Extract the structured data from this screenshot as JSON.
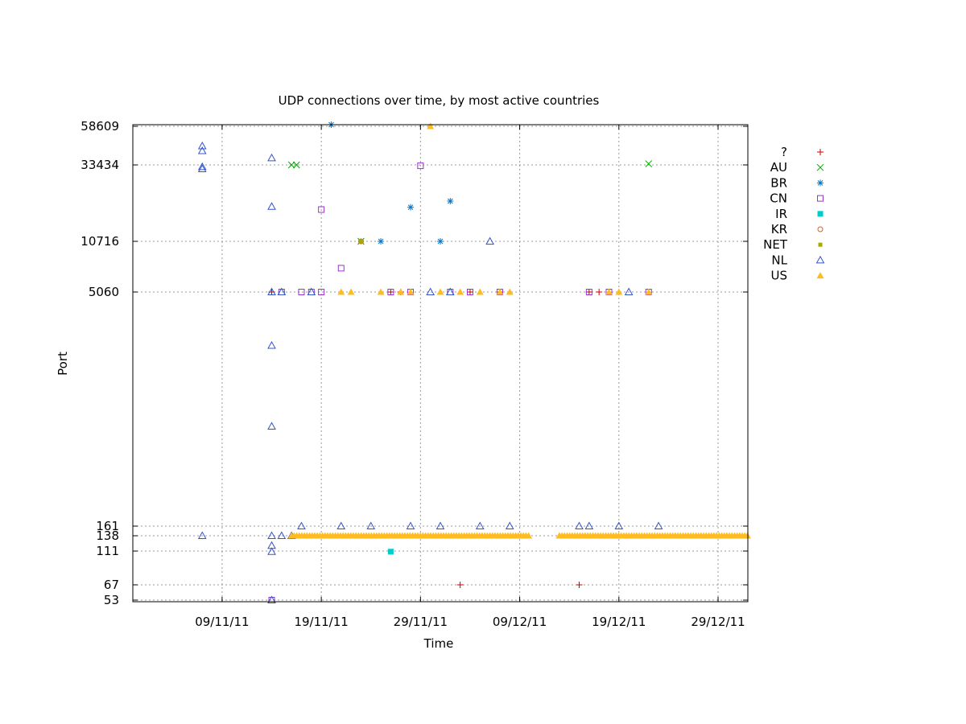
{
  "chart_data": {
    "type": "scatter",
    "title": "UDP connections over time, by most active countries",
    "xlabel": "Time",
    "ylabel": "Port",
    "x_range": [
      "2011-10-31",
      "2012-01-01"
    ],
    "x_ticks": [
      {
        "date": "2011-11-09",
        "label": "09/11/11"
      },
      {
        "date": "2011-11-19",
        "label": "19/11/11"
      },
      {
        "date": "2011-11-29",
        "label": "29/11/11"
      },
      {
        "date": "2011-12-09",
        "label": "09/12/11"
      },
      {
        "date": "2011-12-19",
        "label": "19/12/11"
      },
      {
        "date": "2011-12-29",
        "label": "29/12/11"
      }
    ],
    "y_scale": "log",
    "y_range": [
      53,
      58609
    ],
    "y_ticks": [
      53,
      67,
      111,
      138,
      161,
      5060,
      10716,
      33434,
      58609
    ],
    "grid": true,
    "legend_position": "right",
    "series": [
      {
        "name": "?",
        "marker": "plus",
        "color": "#cc0000",
        "points": [
          [
            "2011-11-14",
            5060
          ],
          [
            "2011-11-26",
            5060
          ],
          [
            "2011-11-27",
            5060
          ],
          [
            "2011-12-04",
            5060
          ],
          [
            "2011-12-07",
            5060
          ],
          [
            "2011-12-16",
            5060
          ],
          [
            "2011-12-17",
            5060
          ],
          [
            "2011-12-03",
            67
          ],
          [
            "2011-12-15",
            67
          ]
        ]
      },
      {
        "name": "AU",
        "marker": "cross",
        "color": "#00aa00",
        "points": [
          [
            "2011-11-16",
            33434
          ],
          [
            "2011-11-16.5",
            33434
          ],
          [
            "2011-12-22",
            34000
          ],
          [
            "2011-11-23",
            10716
          ]
        ]
      },
      {
        "name": "BR",
        "marker": "star",
        "color": "#0077cc",
        "points": [
          [
            "2011-11-20",
            60000
          ],
          [
            "2011-11-28",
            17800
          ],
          [
            "2011-12-02",
            19500
          ],
          [
            "2011-11-25",
            10716
          ],
          [
            "2011-12-01",
            10716
          ]
        ]
      },
      {
        "name": "CN",
        "marker": "square",
        "color": "#9933cc",
        "points": [
          [
            "2011-11-29",
            33000
          ],
          [
            "2011-11-19",
            17200
          ],
          [
            "2011-11-21",
            7200
          ],
          [
            "2011-11-15",
            5060
          ],
          [
            "2011-11-17",
            5060
          ],
          [
            "2011-11-18",
            5060
          ],
          [
            "2011-11-19",
            5060
          ],
          [
            "2011-11-26",
            5060
          ],
          [
            "2011-11-28",
            5060
          ],
          [
            "2011-12-02",
            5060
          ],
          [
            "2011-12-04",
            5060
          ],
          [
            "2011-12-07",
            5060
          ],
          [
            "2011-12-16",
            5060
          ],
          [
            "2011-12-18",
            5060
          ],
          [
            "2011-12-22",
            5060
          ],
          [
            "2011-11-14",
            53
          ]
        ]
      },
      {
        "name": "IR",
        "marker": "filled-square",
        "color": "#00cccc",
        "points": [
          [
            "2011-11-26",
            110
          ]
        ]
      },
      {
        "name": "KR",
        "marker": "circle",
        "color": "#cc6633",
        "points": [
          [
            "2011-11-23",
            10716
          ]
        ]
      },
      {
        "name": "NET",
        "marker": "dot",
        "color": "#aaaa00",
        "points": [
          [
            "2011-11-23",
            10716
          ],
          [
            "2011-11-30",
            58600
          ]
        ]
      },
      {
        "name": "NL",
        "marker": "triangle",
        "color": "#3355cc",
        "points": [
          [
            "2011-11-07",
            44000
          ],
          [
            "2011-11-07",
            41000
          ],
          [
            "2011-11-07",
            32500
          ],
          [
            "2011-11-07",
            31500
          ],
          [
            "2011-11-14",
            37000
          ],
          [
            "2011-11-14",
            18000
          ],
          [
            "2011-11-14",
            2300
          ],
          [
            "2011-11-14",
            700
          ],
          [
            "2011-11-14",
            5060
          ],
          [
            "2011-11-15",
            5060
          ],
          [
            "2011-11-18",
            5060
          ],
          [
            "2011-11-30",
            5060
          ],
          [
            "2011-12-02",
            5060
          ],
          [
            "2011-12-20",
            5060
          ],
          [
            "2011-12-06",
            10716
          ],
          [
            "2011-11-07",
            138
          ],
          [
            "2011-11-14",
            138
          ],
          [
            "2011-11-15",
            138
          ],
          [
            "2011-11-16",
            138
          ],
          [
            "2011-11-14",
            120
          ],
          [
            "2011-11-14",
            110
          ],
          [
            "2011-11-14",
            53
          ],
          [
            "2011-11-17",
            161
          ],
          [
            "2011-11-21",
            161
          ],
          [
            "2011-11-24",
            161
          ],
          [
            "2011-11-28",
            161
          ],
          [
            "2011-12-01",
            161
          ],
          [
            "2011-12-05",
            161
          ],
          [
            "2011-12-08",
            161
          ],
          [
            "2011-12-15",
            161
          ],
          [
            "2011-12-16",
            161
          ],
          [
            "2011-12-19",
            161
          ],
          [
            "2011-12-23",
            161
          ]
        ]
      },
      {
        "name": "US",
        "marker": "filled-triangle",
        "color": "#ffbb22",
        "points": [
          [
            "2011-11-30",
            58600
          ],
          [
            "2011-11-21",
            5060
          ],
          [
            "2011-11-22",
            5060
          ],
          [
            "2011-11-25",
            5060
          ],
          [
            "2011-11-27",
            5060
          ],
          [
            "2011-11-28",
            5060
          ],
          [
            "2011-12-01",
            5060
          ],
          [
            "2011-12-03",
            5060
          ],
          [
            "2011-12-05",
            5060
          ],
          [
            "2011-12-07",
            5060
          ],
          [
            "2011-12-08",
            5060
          ],
          [
            "2011-12-18",
            5060
          ],
          [
            "2011-12-19",
            5060
          ],
          [
            "2011-12-22",
            5060
          ]
        ],
        "segments": [
          {
            "from": "2011-11-16",
            "to": "2011-12-10",
            "y": 138
          },
          {
            "from": "2011-12-13",
            "to": "2012-01-01",
            "y": 138
          }
        ]
      }
    ]
  }
}
